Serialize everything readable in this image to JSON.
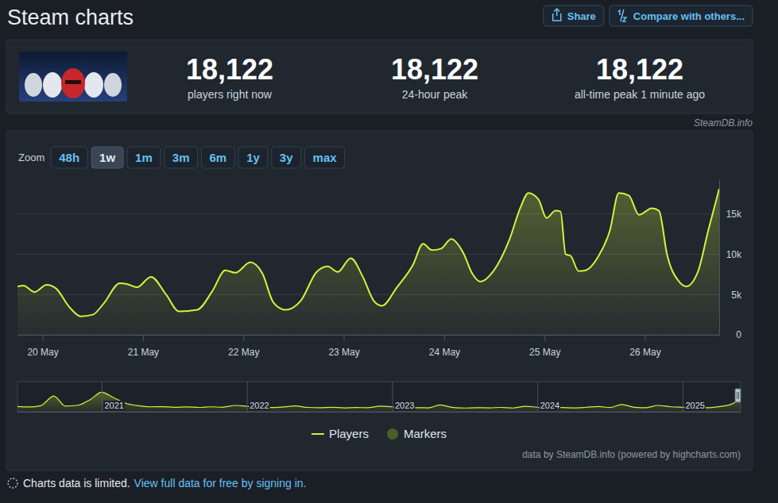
{
  "header": {
    "title": "Steam charts",
    "buttons": [
      "Share",
      "Compare with others..."
    ]
  },
  "stats": [
    {
      "value": "18,122",
      "label": "players right now"
    },
    {
      "value": "18,122",
      "label": "24-hour peak"
    },
    {
      "value": "18,122",
      "label": "all-time peak 1 minute ago"
    }
  ],
  "source": "SteamDB.info",
  "zoom": {
    "label": "Zoom",
    "options": [
      "48h",
      "1w",
      "1m",
      "3m",
      "6m",
      "1y",
      "3y",
      "max"
    ],
    "active": "1w"
  },
  "chart_data": [
    {
      "type": "area",
      "x": [
        19.75,
        19.81,
        19.92,
        20.04,
        20.13,
        20.27,
        20.38,
        20.5,
        20.61,
        20.77,
        20.84,
        20.94,
        21.08,
        21.23,
        21.36,
        21.54,
        21.69,
        21.82,
        21.92,
        22.07,
        22.19,
        22.3,
        22.42,
        22.57,
        22.73,
        22.84,
        22.94,
        23.07,
        23.19,
        23.3,
        23.38,
        23.53,
        23.69,
        23.79,
        23.88,
        23.97,
        24.07,
        24.19,
        24.28,
        24.36,
        24.49,
        24.65,
        24.76,
        24.84,
        24.94,
        25.02,
        25.11,
        25.16,
        25.21,
        25.26,
        25.34,
        25.41,
        25.53,
        25.65,
        25.74,
        25.84,
        25.94,
        26.07,
        26.14,
        26.22,
        26.34,
        26.41,
        26.53,
        26.63,
        26.74
      ],
      "series": [
        {
          "name": "Players",
          "color": "#cdf53c",
          "values": [
            6000,
            6100,
            5300,
            6200,
            5800,
            3400,
            2300,
            2500,
            3900,
            6400,
            6300,
            5900,
            7200,
            5000,
            2900,
            3100,
            5400,
            8000,
            7700,
            9000,
            7600,
            4000,
            3100,
            4200,
            7800,
            8500,
            7800,
            9500,
            7200,
            4200,
            3600,
            5900,
            8700,
            11300,
            10500,
            10700,
            11900,
            10200,
            7600,
            6600,
            7900,
            11800,
            15800,
            17600,
            16800,
            14500,
            15400,
            15300,
            10000,
            9800,
            7900,
            8000,
            9600,
            12900,
            17600,
            17300,
            14900,
            15700,
            15400,
            10000,
            6600,
            6000,
            7900,
            12900,
            18122
          ]
        },
        {
          "name": "Markers",
          "color": "#4a5f28",
          "type": "scatter",
          "marker": "circle",
          "values": [
            null,
            null,
            null,
            null,
            null,
            null,
            null,
            null,
            null,
            null,
            null,
            null,
            null,
            null,
            null,
            null,
            null,
            null,
            null,
            null,
            null,
            null,
            null,
            null,
            null,
            null,
            null,
            null,
            null,
            null,
            null,
            null,
            null,
            null,
            null,
            null,
            null,
            null,
            null,
            null,
            null,
            null,
            null,
            null,
            null,
            null,
            null,
            null,
            null,
            null,
            null,
            null,
            null,
            null,
            null,
            null,
            null,
            null,
            null,
            null,
            null,
            null,
            null,
            null,
            null
          ]
        }
      ],
      "xlim": [
        19.75,
        26.74
      ],
      "xticks": [
        {
          "value": 20,
          "label": "20 May"
        },
        {
          "value": 21,
          "label": "21 May"
        },
        {
          "value": 22,
          "label": "22 May"
        },
        {
          "value": 23,
          "label": "23 May"
        },
        {
          "value": 24,
          "label": "24 May"
        },
        {
          "value": 25,
          "label": "25 May"
        },
        {
          "value": 26,
          "label": "26 May"
        }
      ],
      "ylim": [
        0,
        19300
      ],
      "yticks": [
        0,
        {
          "value": 5000,
          "label": "5k"
        },
        {
          "value": 10000,
          "label": "10k"
        },
        {
          "value": 15000,
          "label": "15k"
        }
      ],
      "grid": true,
      "legend": "bottom"
    },
    {
      "type": "area",
      "x": [
        2020.42,
        2020.5,
        2020.58,
        2020.67,
        2020.75,
        2020.83,
        2020.92,
        2021,
        2021.08,
        2021.17,
        2021.25,
        2021.33,
        2021.42,
        2021.5,
        2021.58,
        2021.67,
        2021.75,
        2021.83,
        2021.92,
        2022,
        2022.08,
        2022.17,
        2022.25,
        2022.33,
        2022.42,
        2022.5,
        2022.58,
        2022.67,
        2022.75,
        2022.83,
        2022.92,
        2023,
        2023.08,
        2023.17,
        2023.25,
        2023.33,
        2023.42,
        2023.5,
        2023.58,
        2023.67,
        2023.75,
        2023.83,
        2023.92,
        2024,
        2024.08,
        2024.17,
        2024.25,
        2024.33,
        2024.42,
        2024.5,
        2024.58,
        2024.67,
        2024.75,
        2024.83,
        2024.92,
        2025,
        2025.08,
        2025.17,
        2025.25,
        2025.33,
        2025.4
      ],
      "values": [
        3500,
        3200,
        4000,
        10500,
        3800,
        4200,
        8000,
        13000,
        9500,
        5500,
        4000,
        3300,
        3400,
        3000,
        3200,
        2900,
        3300,
        3000,
        4200,
        3600,
        3000,
        2800,
        3200,
        3900,
        2900,
        2700,
        3000,
        2600,
        2800,
        2700,
        3800,
        3300,
        2800,
        2700,
        2600,
        4500,
        2800,
        2500,
        2700,
        2600,
        2900,
        2500,
        3600,
        3000,
        2700,
        2800,
        2600,
        2900,
        3500,
        2800,
        4800,
        3000,
        2700,
        4200,
        3300,
        3000,
        2800,
        2700,
        3400,
        4800,
        8500
      ],
      "color": "#cdf53c",
      "xlim": [
        2020.42,
        2025.4
      ],
      "xticks": [
        2021,
        2022,
        2023,
        2024,
        2025
      ],
      "ylim": [
        0,
        20000
      ],
      "grid": true,
      "tick_labels": "x"
    }
  ],
  "credit": "data by SteamDB.info (powered by highcharts.com)",
  "notice": {
    "text": "Charts data is limited.",
    "link": "View full data for free by signing in."
  }
}
